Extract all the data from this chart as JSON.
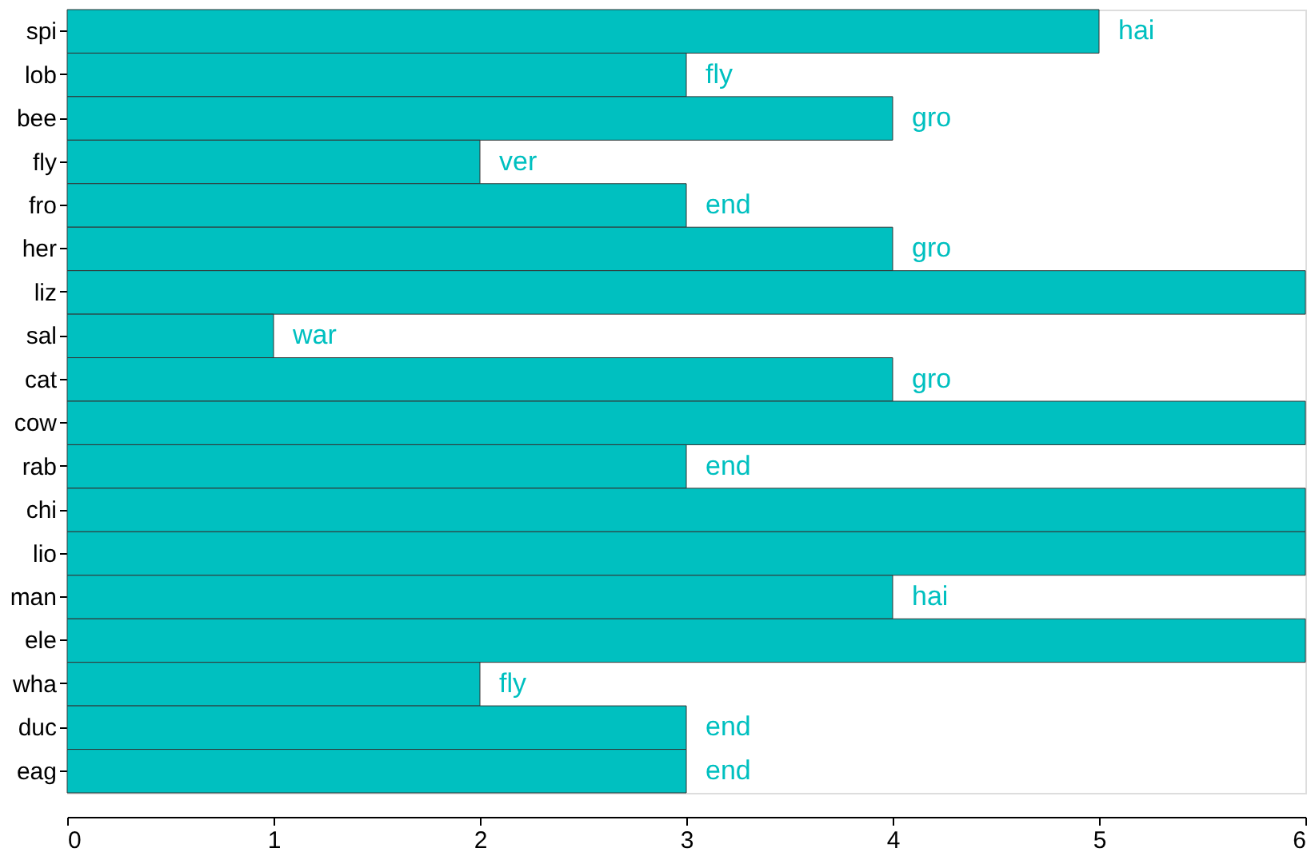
{
  "chart_data": {
    "type": "bar",
    "orientation": "horizontal",
    "categories": [
      "spi",
      "lob",
      "bee",
      "fly",
      "fro",
      "her",
      "liz",
      "sal",
      "cat",
      "cow",
      "rab",
      "chi",
      "lio",
      "man",
      "ele",
      "wha",
      "duc",
      "eag"
    ],
    "values": [
      5,
      3,
      4,
      2,
      3,
      4,
      6,
      1,
      4,
      6,
      3,
      6,
      6,
      4,
      6,
      2,
      3,
      3
    ],
    "color": "#00c0c0",
    "xlim": [
      0,
      6
    ],
    "xticks": [
      0,
      1,
      2,
      3,
      4,
      5,
      6
    ],
    "grid": false,
    "annotations": [
      {
        "text": "hai",
        "x": 5,
        "y": "spi"
      },
      {
        "text": "fly",
        "x": 3,
        "y": "lob"
      },
      {
        "text": "gro",
        "x": 4,
        "y": "bee"
      },
      {
        "text": "ver",
        "x": 2,
        "y": "fly"
      },
      {
        "text": "end",
        "x": 3,
        "y": "fro"
      },
      {
        "text": "gro",
        "x": 4,
        "y": "her"
      },
      {
        "text": "war",
        "x": 1,
        "y": "sal"
      },
      {
        "text": "gro",
        "x": 4,
        "y": "cat"
      },
      {
        "text": "end",
        "x": 3,
        "y": "rab"
      },
      {
        "text": "hai",
        "x": 4,
        "y": "man"
      },
      {
        "text": "fly",
        "x": 2,
        "y": "wha"
      },
      {
        "text": "end",
        "x": 3,
        "y": "duc"
      },
      {
        "text": "end",
        "x": 3,
        "y": "eag"
      }
    ]
  }
}
